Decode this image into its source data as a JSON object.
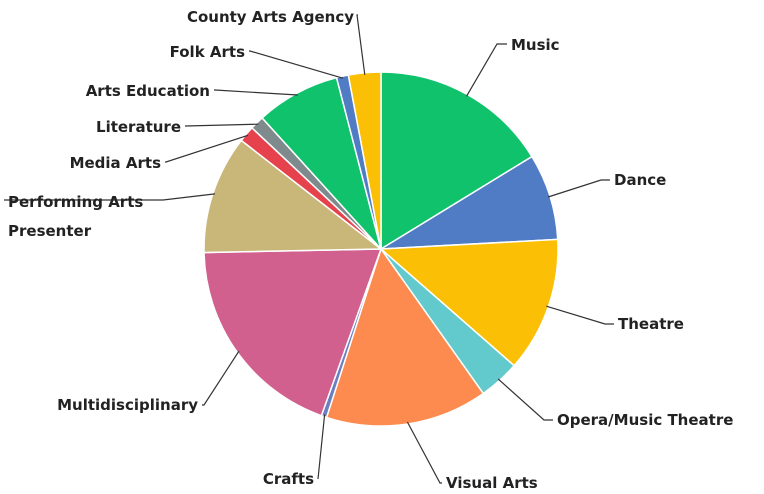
{
  "chart_data": {
    "type": "pie",
    "title": "",
    "start_angle_deg": 0,
    "direction": "clockwise",
    "slices": [
      {
        "label": "Music",
        "value": 16.5,
        "color": "#11c26d"
      },
      {
        "label": "Dance",
        "value": 8.0,
        "color": "#4f7cc4"
      },
      {
        "label": "Theatre",
        "value": 12.5,
        "color": "#fbbf05"
      },
      {
        "label": "Opera/Music Theatre",
        "value": 3.8,
        "color": "#62c9cc"
      },
      {
        "label": "Visual Arts",
        "value": 15.0,
        "color": "#fd8a4e"
      },
      {
        "label": "Crafts",
        "value": 0.5,
        "color": "#6b7fbf"
      },
      {
        "label": "Multidisciplinary",
        "value": 19.5,
        "color": "#d2608f"
      },
      {
        "label": "Performing Arts Presenter",
        "value": 11.0,
        "color": "#c9b77a"
      },
      {
        "label": "Media Arts",
        "value": 1.5,
        "color": "#e5424d"
      },
      {
        "label": "Literature",
        "value": 1.3,
        "color": "#7e8a8c"
      },
      {
        "label": "Arts Education",
        "value": 7.8,
        "color": "#11c26d"
      },
      {
        "label": "Folk Arts",
        "value": 1.1,
        "color": "#4f7cc4"
      },
      {
        "label": "County Arts Agency",
        "value": 3.0,
        "color": "#fbbf05"
      }
    ]
  }
}
